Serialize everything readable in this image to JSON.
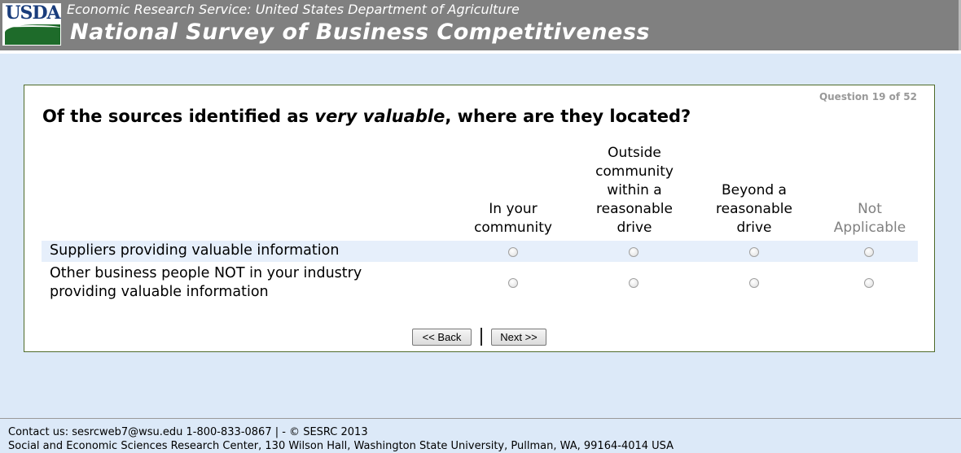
{
  "header": {
    "logo_text": "USDA",
    "subtitle": "Economic Research Service: United States Department of Agriculture",
    "title": "National Survey of Business Competitiveness"
  },
  "question": {
    "counter": "Question 19 of 52",
    "text_before": "Of the sources identified as ",
    "text_em": "very valuable",
    "text_after": ", where are they located?",
    "columns": [
      "In your community",
      "Outside community within a reasonable drive",
      "Beyond a reasonable drive",
      "Not Applicable"
    ],
    "rows": [
      "Suppliers providing valuable information",
      "Other business people NOT in your industry providing valuable information"
    ]
  },
  "nav": {
    "back": "<< Back",
    "next": "Next >>"
  },
  "footer": {
    "line1": "Contact us: sesrcweb7@wsu.edu 1-800-833-0867 | - © SESRC 2013",
    "line2": "Social and Economic Sciences Research Center, 130 Wilson Hall, Washington State University, Pullman, WA, 99164-4014 USA"
  },
  "colors": {
    "header_bg": "#808080",
    "page_bg": "#dce9f8",
    "row_highlight": "#e6effb",
    "na_text": "#808080"
  }
}
